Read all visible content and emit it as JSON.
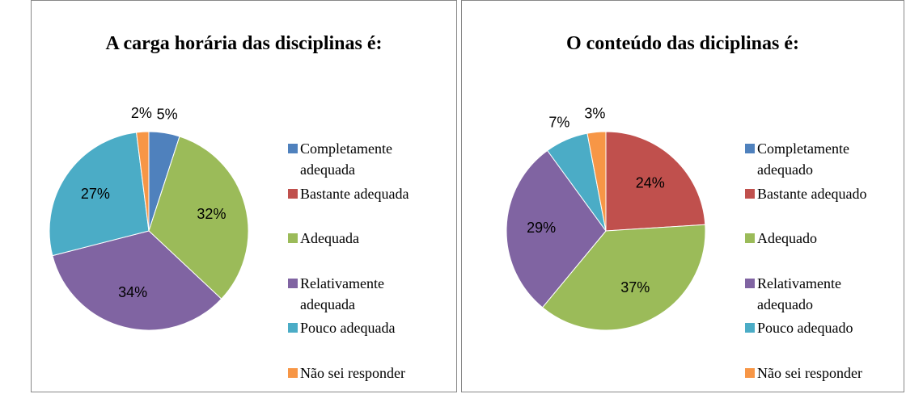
{
  "chart_data": [
    {
      "type": "pie",
      "title": "A carga horária das disciplinas é:",
      "categories": [
        "Completamente adequada",
        "Bastante adequada",
        "Adequada",
        "Relativamente adequada",
        "Pouco adequada",
        "Não sei responder"
      ],
      "values": [
        5,
        0,
        32,
        34,
        27,
        2
      ],
      "colors": [
        "#4f81bd",
        "#c0504d",
        "#9bbb59",
        "#8064a2",
        "#4bacc6",
        "#f79646"
      ]
    },
    {
      "type": "pie",
      "title": "O conteúdo das diciplinas é:",
      "categories": [
        "Completamente adequado",
        "Bastante adequado",
        "Adequado",
        "Relativamente adequado",
        "Pouco adequado",
        "Não sei responder"
      ],
      "values": [
        0,
        24,
        37,
        29,
        7,
        3
      ],
      "colors": [
        "#4f81bd",
        "#c0504d",
        "#9bbb59",
        "#8064a2",
        "#4bacc6",
        "#f79646"
      ]
    }
  ]
}
